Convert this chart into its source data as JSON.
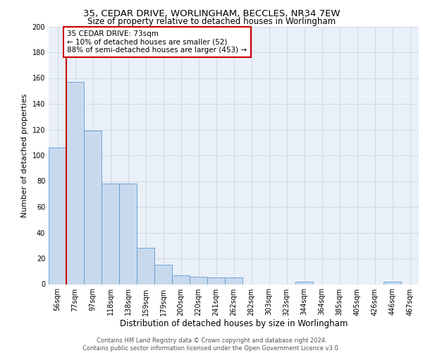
{
  "title1": "35, CEDAR DRIVE, WORLINGHAM, BECCLES, NR34 7EW",
  "title2": "Size of property relative to detached houses in Worlingham",
  "xlabel": "Distribution of detached houses by size in Worlingham",
  "ylabel": "Number of detached properties",
  "bin_labels": [
    "56sqm",
    "77sqm",
    "97sqm",
    "118sqm",
    "138sqm",
    "159sqm",
    "179sqm",
    "200sqm",
    "220sqm",
    "241sqm",
    "262sqm",
    "282sqm",
    "303sqm",
    "323sqm",
    "344sqm",
    "364sqm",
    "385sqm",
    "405sqm",
    "426sqm",
    "446sqm",
    "467sqm"
  ],
  "bar_heights": [
    106,
    157,
    119,
    78,
    78,
    28,
    15,
    7,
    6,
    5,
    5,
    0,
    0,
    0,
    2,
    0,
    0,
    0,
    0,
    2,
    0
  ],
  "bar_color": "#c9d9ed",
  "bar_edge_color": "#5b9bd5",
  "grid_color": "#d0d8e8",
  "annotation_text": "35 CEDAR DRIVE: 73sqm\n← 10% of detached houses are smaller (52)\n88% of semi-detached houses are larger (453) →",
  "annotation_box_edge": "#cc0000",
  "vline_x": 0.5,
  "vline_color": "#cc0000",
  "ylim": [
    0,
    200
  ],
  "yticks": [
    0,
    20,
    40,
    60,
    80,
    100,
    120,
    140,
    160,
    180,
    200
  ],
  "footer": "Contains HM Land Registry data © Crown copyright and database right 2024.\nContains public sector information licensed under the Open Government Licence v3.0.",
  "bg_color": "#eaf0f8",
  "title1_fontsize": 9.5,
  "title2_fontsize": 8.5,
  "ylabel_fontsize": 8,
  "xlabel_fontsize": 8.5,
  "tick_fontsize": 7,
  "footer_fontsize": 6,
  "annot_fontsize": 7.5
}
